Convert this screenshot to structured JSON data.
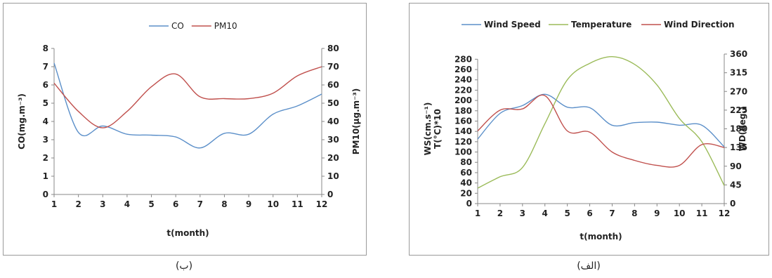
{
  "chart_data": [
    {
      "type": "line",
      "caption": "(ب)",
      "x": [
        1,
        2,
        3,
        4,
        5,
        6,
        7,
        8,
        9,
        10,
        11,
        12
      ],
      "xlabel": "t(month)",
      "ylabel": "CO(mg.m⁻³)",
      "ylabel_right": "PM10(µg.m⁻³)",
      "ylim": [
        0,
        8
      ],
      "ylim_right": [
        0,
        80
      ],
      "yticks": [
        0,
        1,
        2,
        3,
        4,
        5,
        6,
        7,
        8
      ],
      "yticks_right": [
        0,
        10,
        20,
        30,
        40,
        50,
        60,
        70,
        80
      ],
      "legend_position": "top",
      "grid": false,
      "series": [
        {
          "name": "CO",
          "axis": "left",
          "color": "#5b8fc9",
          "values": [
            7.2,
            3.4,
            3.75,
            3.3,
            3.25,
            3.15,
            2.55,
            3.35,
            3.3,
            4.4,
            4.85,
            5.5
          ]
        },
        {
          "name": "PM10",
          "axis": "right",
          "color": "#c0504d",
          "values": [
            61,
            45.5,
            36.5,
            45.5,
            59,
            66,
            53.5,
            52.5,
            52.5,
            55.5,
            65,
            70
          ]
        }
      ]
    },
    {
      "type": "line",
      "caption": "(الف)",
      "x": [
        1,
        2,
        3,
        4,
        5,
        6,
        7,
        8,
        9,
        10,
        11,
        12
      ],
      "xlabel": "t(month)",
      "ylabel": "WS(cm.s⁻¹)",
      "ylabel2": "T(°C)*10",
      "ylabel_right": "WD(deg.)",
      "ylim": [
        0,
        290
      ],
      "ylim_right": [
        0,
        360
      ],
      "yticks": [
        0,
        20,
        40,
        60,
        80,
        100,
        120,
        140,
        160,
        180,
        200,
        220,
        240,
        260,
        280
      ],
      "yticks_right": [
        0,
        45,
        90,
        135,
        180,
        225,
        270,
        315,
        360
      ],
      "legend_position": "top",
      "grid": false,
      "series": [
        {
          "name": "Wind Speed",
          "axis": "left",
          "color": "#5b8fc9",
          "values": [
            125,
            175,
            190,
            212,
            187,
            186,
            152,
            157,
            158,
            152,
            152,
            110
          ]
        },
        {
          "name": "Temperature",
          "axis": "left",
          "color": "#9bbb59",
          "values": [
            30,
            52,
            70,
            155,
            240,
            272,
            285,
            270,
            230,
            165,
            120,
            35
          ]
        },
        {
          "name": "Wind Direction",
          "axis": "right",
          "color": "#c0504d",
          "values": [
            175,
            225,
            228,
            260,
            175,
            172,
            124,
            104,
            92,
            92,
            142,
            135
          ]
        }
      ]
    }
  ]
}
